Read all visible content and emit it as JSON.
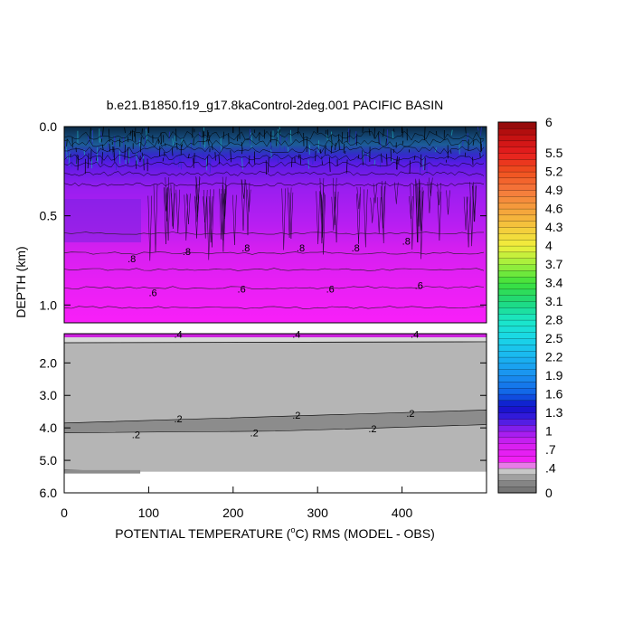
{
  "chart_data": {
    "type": "heatmap",
    "title": "b.e21.B1850.f19_g17.8kaControl-2deg.001 PACIFIC BASIN",
    "xlabel_pre": "POTENTIAL TEMPERATURE (",
    "xlabel_sup": "o",
    "xlabel_post": "C) RMS (MODEL - OBS)",
    "ylabel": "DEPTH (km)",
    "xlim": [
      0,
      500
    ],
    "x_ticks": [
      {
        "v": 0,
        "label": "0"
      },
      {
        "v": 100,
        "label": "100"
      },
      {
        "v": 200,
        "label": "200"
      },
      {
        "v": 300,
        "label": "300"
      },
      {
        "v": 400,
        "label": "400"
      }
    ],
    "upper_ylim": [
      0.0,
      1.1
    ],
    "upper_y_ticks": [
      {
        "v": 0.0,
        "label": "0.0"
      },
      {
        "v": 0.5,
        "label": "0.5"
      },
      {
        "v": 1.0,
        "label": "1.0"
      }
    ],
    "lower_ylim": [
      1.1,
      6.0
    ],
    "lower_y_ticks": [
      {
        "v": 2.0,
        "label": "2.0"
      },
      {
        "v": 3.0,
        "label": "3.0"
      },
      {
        "v": 4.0,
        "label": "4.0"
      },
      {
        "v": 5.0,
        "label": "5.0"
      },
      {
        "v": 6.0,
        "label": "6.0"
      }
    ],
    "data_bottom_depth": 5.35,
    "colorbar": {
      "range": [
        0,
        6
      ],
      "ticks": [
        {
          "v": 6,
          "label": "6"
        },
        {
          "v": 5.5,
          "label": "5.5"
        },
        {
          "v": 5.2,
          "label": "5.2"
        },
        {
          "v": 4.9,
          "label": "4.9"
        },
        {
          "v": 4.6,
          "label": "4.6"
        },
        {
          "v": 4.3,
          "label": "4.3"
        },
        {
          "v": 4.0,
          "label": "4"
        },
        {
          "v": 3.7,
          "label": "3.7"
        },
        {
          "v": 3.4,
          "label": "3.4"
        },
        {
          "v": 3.1,
          "label": "3.1"
        },
        {
          "v": 2.8,
          "label": "2.8"
        },
        {
          "v": 2.5,
          "label": "2.5"
        },
        {
          "v": 2.2,
          "label": "2.2"
        },
        {
          "v": 1.9,
          "label": "1.9"
        },
        {
          "v": 1.6,
          "label": "1.6"
        },
        {
          "v": 1.3,
          "label": "1.3"
        },
        {
          "v": 1.0,
          "label": "1"
        },
        {
          "v": 0.7,
          "label": ".7"
        },
        {
          "v": 0.4,
          "label": ".4"
        },
        {
          "v": 0.0,
          "label": "0"
        }
      ]
    },
    "contour_labels": [
      {
        "text": ".8",
        "x": 80,
        "depth": 0.74
      },
      {
        "text": ".8",
        "x": 145,
        "depth": 0.7
      },
      {
        "text": ".8",
        "x": 215,
        "depth": 0.68
      },
      {
        "text": ".8",
        "x": 280,
        "depth": 0.68
      },
      {
        "text": ".8",
        "x": 345,
        "depth": 0.68
      },
      {
        "text": ".8",
        "x": 405,
        "depth": 0.64
      },
      {
        "text": ".6",
        "x": 105,
        "depth": 0.93
      },
      {
        "text": ".6",
        "x": 210,
        "depth": 0.91
      },
      {
        "text": ".6",
        "x": 315,
        "depth": 0.91
      },
      {
        "text": ".6",
        "x": 420,
        "depth": 0.89
      },
      {
        "text": ".4",
        "x": 135,
        "depth": 1.11
      },
      {
        "text": ".4",
        "x": 275,
        "depth": 1.11
      },
      {
        "text": ".4",
        "x": 415,
        "depth": 1.11
      },
      {
        "text": ".2",
        "x": 135,
        "depth": 3.72
      },
      {
        "text": ".2",
        "x": 275,
        "depth": 3.6
      },
      {
        "text": ".2",
        "x": 410,
        "depth": 3.55
      },
      {
        "text": ".2",
        "x": 85,
        "depth": 4.2
      },
      {
        "text": ".2",
        "x": 225,
        "depth": 4.15
      },
      {
        "text": ".2",
        "x": 365,
        "depth": 4.03
      }
    ]
  }
}
